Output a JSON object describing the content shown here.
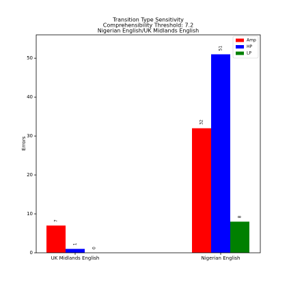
{
  "chart_data": {
    "type": "bar",
    "title": [
      "Transition Type Sensitivity",
      "Comprehensibility Threshold: 7.2",
      "Nigerian English/UK Midlands English"
    ],
    "ylabel": "Errors",
    "categories": [
      "UK Midlands English",
      "Nigerian English"
    ],
    "series": [
      {
        "name": "Amp",
        "color": "#ff0000",
        "values": [
          7,
          32
        ]
      },
      {
        "name": "HP",
        "color": "#0000ff",
        "values": [
          1,
          51
        ]
      },
      {
        "name": "LP",
        "color": "#008000",
        "values": [
          0,
          8
        ]
      }
    ],
    "ylim": [
      0,
      56
    ],
    "yticks": [
      0,
      10,
      20,
      30,
      40,
      50
    ],
    "legend": "upper right"
  }
}
